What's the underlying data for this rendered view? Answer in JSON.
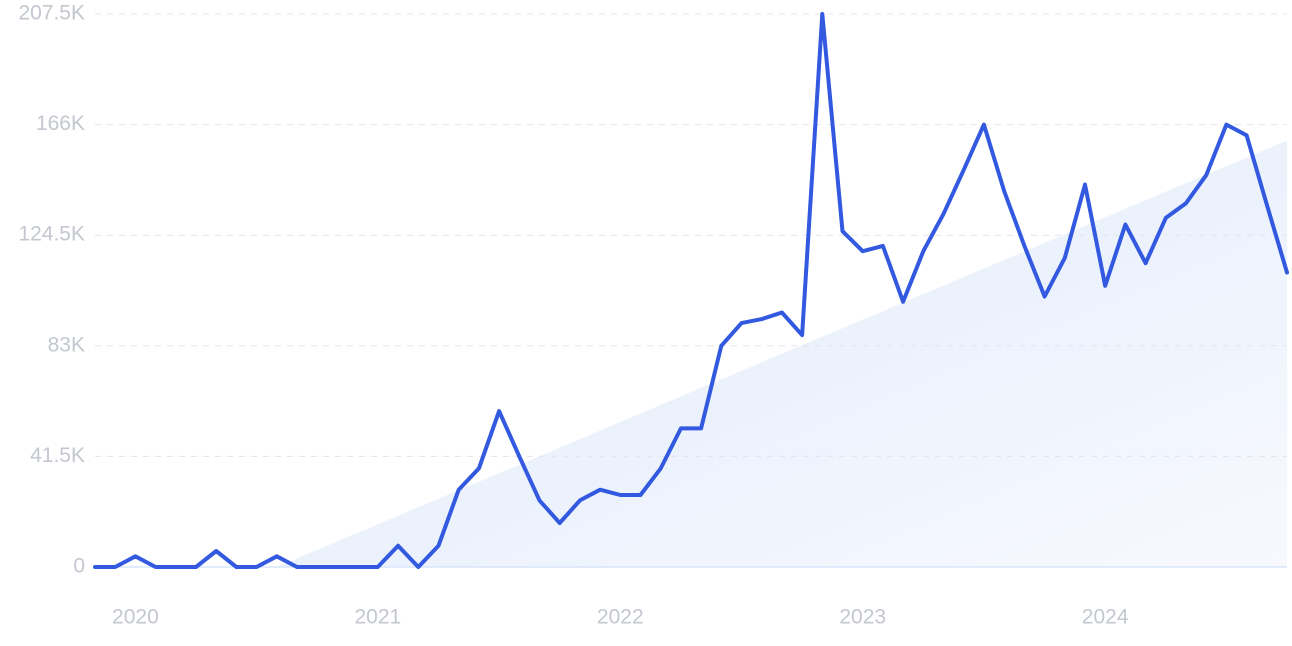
{
  "chart_data": {
    "type": "line",
    "categories": [
      null,
      null,
      "2020",
      null,
      null,
      null,
      null,
      null,
      null,
      null,
      null,
      null,
      null,
      null,
      "2021",
      null,
      null,
      null,
      null,
      null,
      null,
      null,
      null,
      null,
      null,
      null,
      "2022",
      null,
      null,
      null,
      null,
      null,
      null,
      null,
      null,
      null,
      null,
      null,
      "2023",
      null,
      null,
      null,
      null,
      null,
      null,
      null,
      null,
      null,
      null,
      null,
      "2024",
      null,
      null,
      null,
      null,
      null,
      null,
      null,
      null,
      null
    ],
    "values": [
      0,
      0,
      4000,
      0,
      0,
      0,
      6000,
      0,
      0,
      4000,
      0,
      0,
      0,
      0,
      0,
      8000,
      0,
      8000,
      29000,
      37000,
      58500,
      41500,
      25000,
      16500,
      25000,
      29000,
      27000,
      27000,
      37000,
      52000,
      52000,
      83000,
      91500,
      93000,
      95500,
      87000,
      207500,
      126000,
      118500,
      120500,
      99500,
      118500,
      132500,
      149000,
      166000,
      141000,
      120500,
      101500,
      116000,
      143500,
      105500,
      128500,
      114000,
      131000,
      136500,
      147000,
      166000,
      162000,
      136000,
      110500
    ],
    "color": "#3259e0",
    "trend": {
      "color": "#e6effb",
      "values": [
        null,
        null,
        null,
        null,
        null,
        null,
        null,
        null,
        null,
        0,
        3200,
        6400,
        9600,
        12800,
        16000,
        19200,
        22400,
        25600,
        28800,
        32000,
        35200,
        38400,
        41600,
        44800,
        48000,
        51200,
        54400,
        57600,
        60800,
        64000,
        67200,
        70400,
        73600,
        76800,
        80000,
        83200,
        86400,
        89600,
        92800,
        96000,
        99200,
        102400,
        105600,
        108800,
        112000,
        115200,
        118400,
        121600,
        124800,
        128000,
        131200,
        134400,
        137600,
        140800,
        144000,
        147200,
        150400,
        153600,
        156800,
        160000
      ]
    },
    "ylim": [
      0,
      207500
    ],
    "yticks": [
      0,
      {
        "value": 41500,
        "label": "41.5K"
      },
      {
        "value": 83000,
        "label": "83K"
      },
      {
        "value": 124500,
        "label": "124.5K"
      },
      {
        "value": 166000,
        "label": "166K"
      },
      {
        "value": 207500,
        "label": "207.5K"
      }
    ],
    "grid": true
  }
}
